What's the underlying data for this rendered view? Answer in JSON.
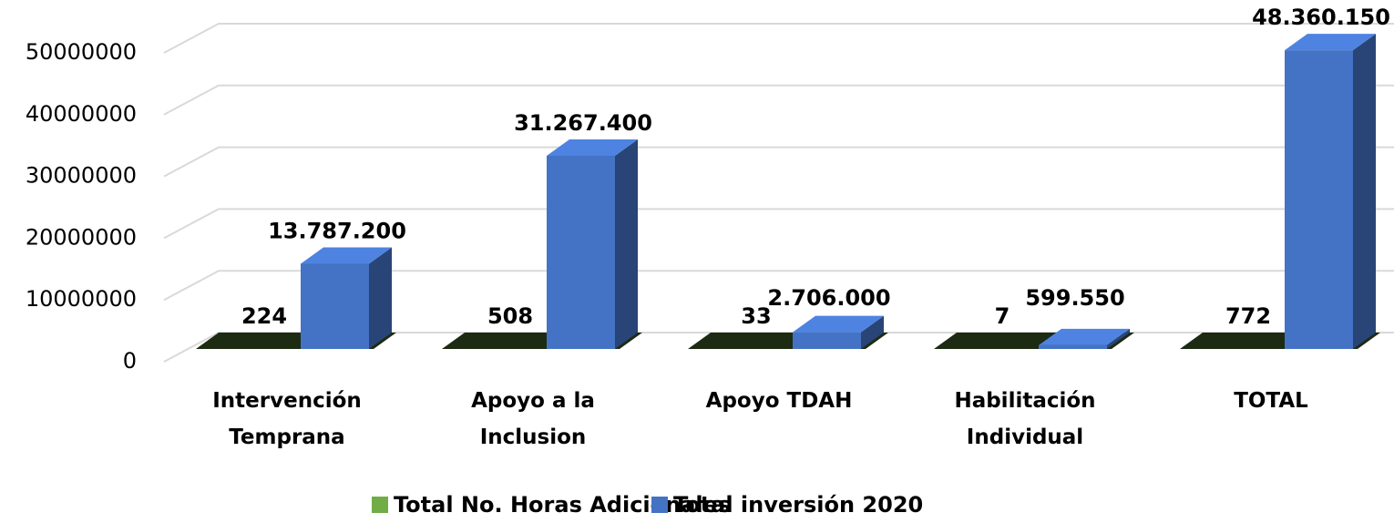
{
  "chart_data": {
    "type": "bar3d",
    "categories": [
      "Intervención Temprana",
      "Apoyo a la Inclusion",
      "Apoyo TDAH",
      "Habilitación Individual",
      "TOTAL"
    ],
    "series": [
      {
        "name": "Total No. Horas Adicionales",
        "color": "#70ad47",
        "values": [
          224,
          508,
          33,
          7,
          772
        ]
      },
      {
        "name": "Total inversión 2020",
        "color": "#4472c4",
        "values": [
          13787200,
          31267400,
          2706000,
          599550,
          48360150
        ],
        "value_labels": [
          "13.787.200",
          "31.267.400",
          "2.706.000",
          "599.550",
          "48.360.150"
        ]
      }
    ],
    "ylim": [
      0,
      50000000
    ],
    "yticks": [
      0,
      10000000,
      20000000,
      30000000,
      40000000,
      50000000
    ],
    "grid": true,
    "legend": "bottom"
  }
}
